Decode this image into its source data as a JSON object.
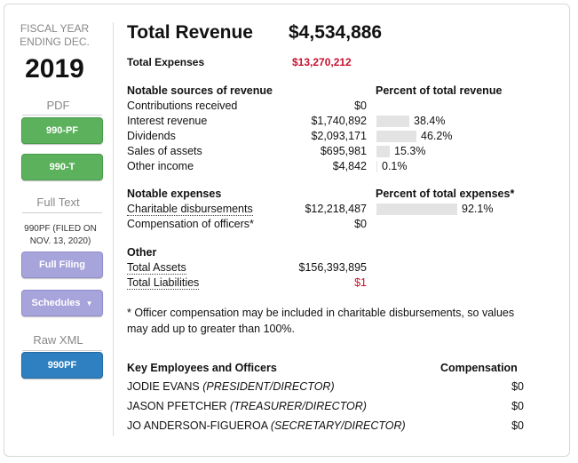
{
  "sidebar": {
    "fiscal_label_line1": "FISCAL YEAR",
    "fiscal_label_line2": "ENDING DEC.",
    "year": "2019",
    "pdf_label": "PDF",
    "btn_990pf": "990-PF",
    "btn_990t": "990-T",
    "full_text_label": "Full Text",
    "filed_note_line1": "990PF (FILED ON",
    "filed_note_line2": "NOV. 13, 2020)",
    "btn_full_filing": "Full Filing",
    "btn_schedules": "Schedules",
    "raw_xml_label": "Raw XML",
    "btn_xml": "990PF"
  },
  "summary": {
    "total_revenue_label": "Total Revenue",
    "total_revenue_value": "$4,534,886",
    "total_expenses_label": "Total Expenses",
    "total_expenses_value": "$13,270,212"
  },
  "revenue": {
    "header": "Notable sources of revenue",
    "pct_header": "Percent of total revenue",
    "items": [
      {
        "label": "Contributions received",
        "value": "$0",
        "pct": "",
        "fraction": 0
      },
      {
        "label": "Interest revenue",
        "value": "$1,740,892",
        "pct": "38.4%",
        "fraction": 0.384
      },
      {
        "label": "Dividends",
        "value": "$2,093,171",
        "pct": "46.2%",
        "fraction": 0.462
      },
      {
        "label": "Sales of assets",
        "value": "$695,981",
        "pct": "15.3%",
        "fraction": 0.153
      },
      {
        "label": "Other income",
        "value": "$4,842",
        "pct": "0.1%",
        "fraction": 0.001
      }
    ]
  },
  "expenses": {
    "header": "Notable expenses",
    "pct_header": "Percent of total expenses*",
    "items": [
      {
        "label": "Charitable disbursements",
        "value": "$12,218,487",
        "pct": "92.1%",
        "fraction": 0.921
      },
      {
        "label": "Compensation of officers*",
        "value": "$0",
        "pct": "",
        "fraction": 0
      }
    ]
  },
  "other": {
    "header": "Other",
    "items": [
      {
        "label": "Total Assets",
        "value": "$156,393,895"
      },
      {
        "label": "Total Liabilities",
        "value": "$1"
      }
    ]
  },
  "note": "* Officer compensation may be included in charitable disbursements, so values may add up to greater than 100%.",
  "employees": {
    "header": "Key Employees and Officers",
    "comp_header": "Compensation",
    "items": [
      {
        "name": "JODIE EVANS",
        "title": "(PRESIDENT/DIRECTOR)",
        "comp": "$0"
      },
      {
        "name": "JASON PFETCHER",
        "title": "(TREASURER/DIRECTOR)",
        "comp": "$0"
      },
      {
        "name": "JO ANDERSON-FIGUEROA",
        "title": "(SECRETARY/DIRECTOR)",
        "comp": "$0"
      }
    ]
  },
  "colors": {
    "red": "#c8102e",
    "green_button": "#5cb15d",
    "purple_button": "#a7a3db",
    "blue_button": "#2f80c0"
  }
}
